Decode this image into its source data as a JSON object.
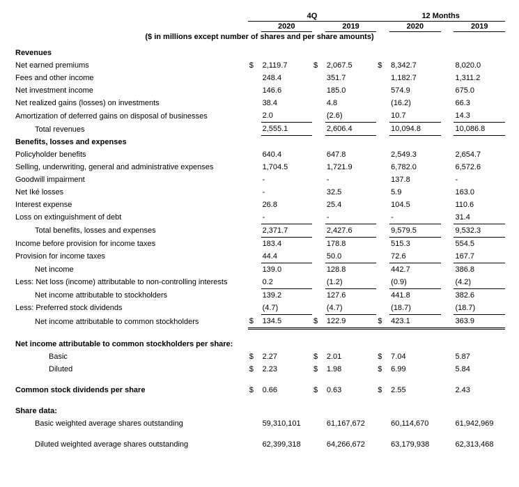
{
  "headers": {
    "q_label": "4Q",
    "yr_label": "12 Months",
    "c1": "2020",
    "c2": "2019",
    "c3": "2020",
    "c4": "2019",
    "note": "($ in millions except number of shares and per share amounts)"
  },
  "sections": {
    "revenues": "Revenues",
    "benefits": "Benefits, losses and expenses",
    "eps": "Net income attributable to common stockholders per share:",
    "div": "Common stock dividends per share",
    "shares": "Share data:"
  },
  "rows": {
    "nep": {
      "l": "Net earned premiums",
      "v": [
        "2,119.7",
        "2,067.5",
        "8,342.7",
        "8,020.0"
      ],
      "s": [
        "$",
        "$",
        "$",
        ""
      ]
    },
    "fees": {
      "l": "Fees and other income",
      "v": [
        "248.4",
        "351.7",
        "1,182.7",
        "1,311.2"
      ]
    },
    "nii": {
      "l": "Net investment income",
      "v": [
        "146.6",
        "185.0",
        "574.9",
        "675.0"
      ]
    },
    "nrgl": {
      "l": "Net realized gains (losses) on investments",
      "v": [
        "38.4",
        "4.8",
        "(16.2)",
        "66.3"
      ]
    },
    "amort": {
      "l": "Amortization of deferred gains on disposal of businesses",
      "v": [
        "2.0",
        "(2.6)",
        "10.7",
        "14.3"
      ]
    },
    "trev": {
      "l": "Total revenues",
      "v": [
        "2,555.1",
        "2,606.4",
        "10,094.8",
        "10,086.8"
      ]
    },
    "phb": {
      "l": "Policyholder benefits",
      "v": [
        "640.4",
        "647.8",
        "2,549.3",
        "2,654.7"
      ]
    },
    "suga": {
      "l": "Selling, underwriting, general and administrative expenses",
      "v": [
        "1,704.5",
        "1,721.9",
        "6,782.0",
        "6,572.6"
      ]
    },
    "gw": {
      "l": "Goodwill impairment",
      "v": [
        "-",
        "-",
        "137.8",
        "-"
      ]
    },
    "ike": {
      "l": "Net Iké losses",
      "v": [
        "-",
        "32.5",
        "5.9",
        "163.0"
      ]
    },
    "int": {
      "l": "Interest expense",
      "v": [
        "26.8",
        "25.4",
        "104.5",
        "110.6"
      ]
    },
    "ext": {
      "l": "Loss on extinguishment of debt",
      "v": [
        "-",
        "-",
        "-",
        "31.4"
      ]
    },
    "tble": {
      "l": "Total benefits, losses and expenses",
      "v": [
        "2,371.7",
        "2,427.6",
        "9,579.5",
        "9,532.3"
      ]
    },
    "ibt": {
      "l": "Income before provision for income taxes",
      "v": [
        "183.4",
        "178.8",
        "515.3",
        "554.5"
      ]
    },
    "tax": {
      "l": "Provision for income taxes",
      "v": [
        "44.4",
        "50.0",
        "72.6",
        "167.7"
      ]
    },
    "ni": {
      "l": "Net income",
      "v": [
        "139.0",
        "128.8",
        "442.7",
        "386.8"
      ]
    },
    "nci": {
      "l": "Less: Net loss (income) attributable to non-controlling interests",
      "v": [
        "0.2",
        "(1.2)",
        "(0.9)",
        "(4.2)"
      ]
    },
    "nias": {
      "l": "Net income attributable to stockholders",
      "v": [
        "139.2",
        "127.6",
        "441.8",
        "382.6"
      ]
    },
    "pref": {
      "l": "Less: Preferred stock dividends",
      "v": [
        "(4.7)",
        "(4.7)",
        "(18.7)",
        "(18.7)"
      ]
    },
    "niacs": {
      "l": "Net income attributable to common stockholders",
      "v": [
        "134.5",
        "122.9",
        "423.1",
        "363.9"
      ],
      "s": [
        "$",
        "$",
        "$",
        ""
      ]
    },
    "basic": {
      "l": "Basic",
      "v": [
        "2.27",
        "2.01",
        "7.04",
        "5.87"
      ],
      "s": [
        "$",
        "$",
        "$",
        ""
      ]
    },
    "diluted": {
      "l": "Diluted",
      "v": [
        "2.23",
        "1.98",
        "6.99",
        "5.84"
      ],
      "s": [
        "$",
        "$",
        "$",
        ""
      ]
    },
    "cdps": {
      "v": [
        "0.66",
        "0.63",
        "2.55",
        "2.43"
      ],
      "s": [
        "$",
        "$",
        "$",
        ""
      ]
    },
    "bwaso": {
      "l": "Basic weighted average shares outstanding",
      "v": [
        "59,310,101",
        "61,167,672",
        "60,114,670",
        "61,942,969"
      ]
    },
    "dwaso": {
      "l": "Diluted weighted average shares outstanding",
      "v": [
        "62,399,318",
        "64,266,672",
        "63,179,938",
        "62,313,468"
      ]
    }
  }
}
